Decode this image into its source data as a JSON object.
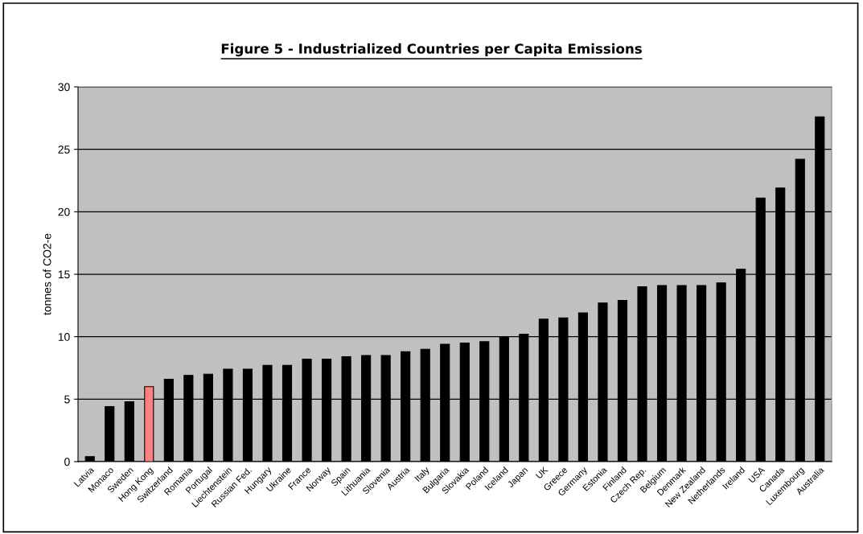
{
  "chart_data": {
    "type": "bar",
    "title": "Figure 5 - Industrialized Countries per Capita Emissions",
    "ylabel": "tonnes of CO2-e",
    "categories": [
      "Latvia",
      "Monaco",
      "Sweden",
      "Hong Kong",
      "Switzerland",
      "Romania",
      "Portugal",
      "Liechtenstein",
      "Russian Fed.",
      "Hungary",
      "Ukraine",
      "France",
      "Norway",
      "Spain",
      "Lithuania",
      "Slovenia",
      "Austria",
      "Italy",
      "Bulgaria",
      "Slovakia",
      "Poland",
      "Iceland",
      "Japan",
      "UK",
      "Greece",
      "Germany",
      "Estonia",
      "Finland",
      "Czech Rep.",
      "Belgium",
      "Denmark",
      "New Zealand",
      "Netherlands",
      "Ireland",
      "USA",
      "Canada",
      "Luxembourg",
      "Australia"
    ],
    "values": [
      0.4,
      4.4,
      4.8,
      6.0,
      6.6,
      6.9,
      7.0,
      7.4,
      7.4,
      7.7,
      7.7,
      8.2,
      8.2,
      8.4,
      8.5,
      8.5,
      8.8,
      9.0,
      9.4,
      9.5,
      9.6,
      10.0,
      10.2,
      11.4,
      11.5,
      11.9,
      12.7,
      12.9,
      14.0,
      14.1,
      14.1,
      14.1,
      14.3,
      15.4,
      21.1,
      21.9,
      24.2,
      27.6
    ],
    "colors": [
      "#000000",
      "#000000",
      "#000000",
      "#ff8080",
      "#000000",
      "#000000",
      "#000000",
      "#000000",
      "#000000",
      "#000000",
      "#000000",
      "#000000",
      "#000000",
      "#000000",
      "#000000",
      "#000000",
      "#000000",
      "#000000",
      "#000000",
      "#000000",
      "#000000",
      "#000000",
      "#000000",
      "#000000",
      "#000000",
      "#000000",
      "#000000",
      "#000000",
      "#000000",
      "#000000",
      "#000000",
      "#000000",
      "#000000",
      "#000000",
      "#000000",
      "#000000",
      "#000000",
      "#000000"
    ],
    "ylim": [
      0,
      30
    ],
    "yticks": [
      0,
      5,
      10,
      15,
      20,
      25,
      30
    ],
    "grid": "y"
  }
}
